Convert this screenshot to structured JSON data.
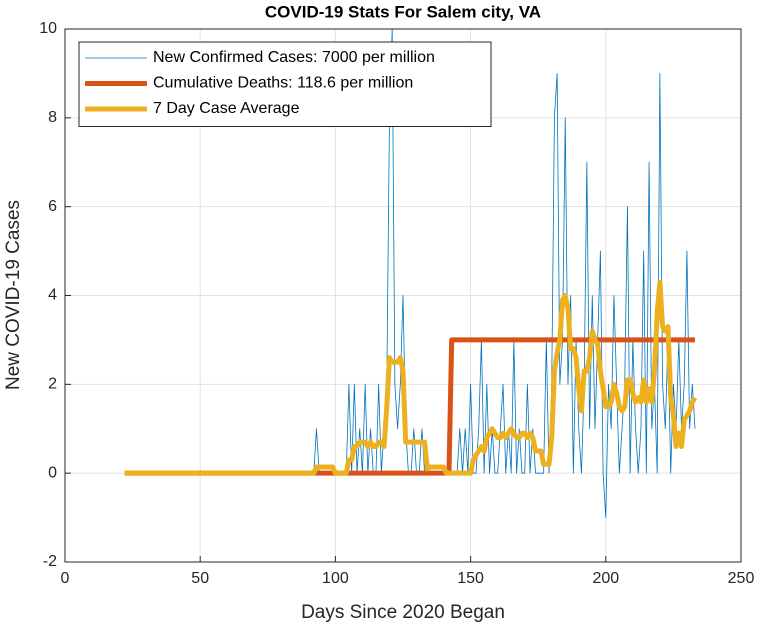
{
  "chart_data": {
    "type": "line",
    "title": "COVID-19 Stats For Salem city, VA",
    "x_label": "Days Since 2020 Began",
    "y_label": "New COVID-19 Cases",
    "xlim": [
      0,
      250
    ],
    "xticks": [
      0,
      50,
      100,
      150,
      200,
      250
    ],
    "ylim": [
      -2,
      10
    ],
    "yticks": [
      -2,
      0,
      2,
      4,
      6,
      8,
      10
    ],
    "grid": true,
    "legend": "top-left",
    "x": [
      22,
      23,
      24,
      25,
      26,
      27,
      28,
      29,
      30,
      31,
      32,
      33,
      34,
      35,
      36,
      37,
      38,
      39,
      40,
      41,
      42,
      43,
      44,
      45,
      46,
      47,
      48,
      49,
      50,
      51,
      52,
      53,
      54,
      55,
      56,
      57,
      58,
      59,
      60,
      61,
      62,
      63,
      64,
      65,
      66,
      67,
      68,
      69,
      70,
      71,
      72,
      73,
      74,
      75,
      76,
      77,
      78,
      79,
      80,
      81,
      82,
      83,
      84,
      85,
      86,
      87,
      88,
      89,
      90,
      91,
      92,
      93,
      94,
      95,
      96,
      97,
      98,
      99,
      100,
      101,
      102,
      103,
      104,
      105,
      106,
      107,
      108,
      109,
      110,
      111,
      112,
      113,
      114,
      115,
      116,
      117,
      118,
      119,
      120,
      121,
      122,
      123,
      124,
      125,
      126,
      127,
      128,
      129,
      130,
      131,
      132,
      133,
      134,
      135,
      136,
      137,
      138,
      139,
      140,
      141,
      142,
      143,
      144,
      145,
      146,
      147,
      148,
      149,
      150,
      151,
      152,
      153,
      154,
      155,
      156,
      157,
      158,
      159,
      160,
      161,
      162,
      163,
      164,
      165,
      166,
      167,
      168,
      169,
      170,
      171,
      172,
      173,
      174,
      175,
      176,
      177,
      178,
      179,
      180,
      181,
      182,
      183,
      184,
      185,
      186,
      187,
      188,
      189,
      190,
      191,
      192,
      193,
      194,
      195,
      196,
      197,
      198,
      199,
      200,
      201,
      202,
      203,
      204,
      205,
      206,
      207,
      208,
      209,
      210,
      211,
      212,
      213,
      214,
      215,
      216,
      217,
      218,
      219,
      220,
      221,
      222,
      223,
      224,
      225,
      226,
      227,
      228,
      229,
      230,
      231,
      232,
      233
    ],
    "series": [
      {
        "name": "New Confirmed Cases: 7000 per million",
        "color": "#0072BD",
        "width": 0.8,
        "values": [
          0,
          0,
          0,
          0,
          0,
          0,
          0,
          0,
          0,
          0,
          0,
          0,
          0,
          0,
          0,
          0,
          0,
          0,
          0,
          0,
          0,
          0,
          0,
          0,
          0,
          0,
          0,
          0,
          0,
          0,
          0,
          0,
          0,
          0,
          0,
          0,
          0,
          0,
          0,
          0,
          0,
          0,
          0,
          0,
          0,
          0,
          0,
          0,
          0,
          0,
          0,
          0,
          0,
          0,
          0,
          0,
          0,
          0,
          0,
          0,
          0,
          0,
          0,
          0,
          0,
          0,
          0,
          0,
          0,
          0,
          0,
          1,
          0,
          0,
          0,
          0,
          0,
          0,
          0,
          0,
          0,
          0,
          0,
          2,
          0,
          2,
          0,
          1,
          0,
          2,
          0,
          1,
          0,
          0,
          2,
          0,
          1,
          2,
          8,
          10,
          2,
          1,
          2,
          4,
          1,
          0,
          0,
          1,
          0,
          0,
          1,
          0,
          0,
          0,
          0,
          0,
          0,
          0,
          0,
          0,
          0,
          0,
          0,
          0,
          1,
          0,
          1,
          0,
          2,
          0,
          0,
          1,
          3,
          0,
          2,
          0,
          1,
          0,
          0,
          1,
          2,
          0,
          1,
          0,
          3,
          0,
          1,
          0,
          0,
          2,
          0,
          1,
          0,
          0,
          0,
          0,
          3,
          0,
          2,
          8,
          9,
          2,
          3,
          8,
          2,
          4,
          0,
          3,
          1,
          0,
          2,
          7,
          1,
          4,
          1,
          3,
          5,
          0,
          -1,
          2,
          1,
          4,
          2,
          0,
          1,
          2,
          6,
          0,
          3,
          1,
          0,
          1,
          5,
          0,
          7,
          1,
          2,
          0,
          9,
          2,
          1,
          3,
          0,
          2,
          1,
          3,
          1,
          2,
          5,
          1,
          2,
          1
        ]
      },
      {
        "name": "Cumulative Deaths: 118.6 per million",
        "color": "#D95319",
        "width": 5,
        "values": [
          0,
          0,
          0,
          0,
          0,
          0,
          0,
          0,
          0,
          0,
          0,
          0,
          0,
          0,
          0,
          0,
          0,
          0,
          0,
          0,
          0,
          0,
          0,
          0,
          0,
          0,
          0,
          0,
          0,
          0,
          0,
          0,
          0,
          0,
          0,
          0,
          0,
          0,
          0,
          0,
          0,
          0,
          0,
          0,
          0,
          0,
          0,
          0,
          0,
          0,
          0,
          0,
          0,
          0,
          0,
          0,
          0,
          0,
          0,
          0,
          0,
          0,
          0,
          0,
          0,
          0,
          0,
          0,
          0,
          0,
          0,
          0,
          0,
          0,
          0,
          0,
          0,
          0,
          0,
          0,
          0,
          0,
          0,
          0,
          0,
          0,
          0,
          0,
          0,
          0,
          0,
          0,
          0,
          0,
          0,
          0,
          0,
          0,
          0,
          0,
          0,
          0,
          0,
          0,
          0,
          0,
          0,
          0,
          0,
          0,
          0,
          0,
          0,
          0,
          0,
          0,
          0,
          0,
          0,
          0,
          0,
          3,
          3,
          3,
          3,
          3,
          3,
          3,
          3,
          3,
          3,
          3,
          3,
          3,
          3,
          3,
          3,
          3,
          3,
          3,
          3,
          3,
          3,
          3,
          3,
          3,
          3,
          3,
          3,
          3,
          3,
          3,
          3,
          3,
          3,
          3,
          3,
          3,
          3,
          3,
          3,
          3,
          3,
          3,
          3,
          3,
          3,
          3,
          3,
          3,
          3,
          3,
          3,
          3,
          3,
          3,
          3,
          3,
          3,
          3,
          3,
          3,
          3,
          3,
          3,
          3,
          3,
          3,
          3,
          3,
          3,
          3,
          3,
          3,
          3,
          3,
          3,
          3,
          3,
          3,
          3,
          3,
          3,
          3,
          3,
          3,
          3,
          3,
          3,
          3,
          3,
          3
        ]
      },
      {
        "name": "7 Day Case Average",
        "color": "#EDB120",
        "width": 5,
        "values": [
          0,
          0,
          0,
          0,
          0,
          0,
          0,
          0,
          0,
          0,
          0,
          0,
          0,
          0,
          0,
          0,
          0,
          0,
          0,
          0,
          0,
          0,
          0,
          0,
          0,
          0,
          0,
          0,
          0,
          0,
          0,
          0,
          0,
          0,
          0,
          0,
          0,
          0,
          0,
          0,
          0,
          0,
          0,
          0,
          0,
          0,
          0,
          0,
          0,
          0,
          0,
          0,
          0,
          0,
          0,
          0,
          0,
          0,
          0,
          0,
          0,
          0,
          0,
          0,
          0,
          0,
          0,
          0,
          0,
          0,
          0,
          0.14,
          0.14,
          0.14,
          0.14,
          0.14,
          0.14,
          0.14,
          0,
          0,
          0,
          0,
          0,
          0.3,
          0.3,
          0.6,
          0.6,
          0.7,
          0.7,
          0.7,
          0.6,
          0.7,
          0.6,
          0.6,
          0.7,
          0.7,
          0.6,
          1.5,
          2.6,
          2.5,
          2.5,
          2.5,
          2.6,
          2.3,
          0.7,
          0.7,
          0.7,
          0.7,
          0.7,
          0.7,
          0.7,
          0.7,
          0.1,
          0.14,
          0.14,
          0.14,
          0.14,
          0.14,
          0.14,
          0,
          0,
          0,
          0,
          0,
          0,
          0,
          0,
          0,
          0,
          0.3,
          0.4,
          0.5,
          0.6,
          0.5,
          0.8,
          0.9,
          1,
          0.9,
          0.8,
          0.8,
          0.9,
          0.8,
          0.9,
          1,
          0.9,
          0.8,
          0.8,
          0.9,
          0.9,
          0.8,
          0.9,
          0.8,
          0.5,
          0.5,
          0.5,
          0.2,
          0.2,
          0.2,
          0.8,
          2.3,
          2.7,
          3,
          3.9,
          4,
          3.7,
          2.8,
          2.8,
          2.6,
          1.9,
          1.4,
          2.3,
          2.3,
          2.6,
          3.2,
          3,
          2.9,
          2.3,
          1.9,
          1.5,
          1.5,
          1.6,
          2,
          1.8,
          1.5,
          1.4,
          1.5,
          2.1,
          2.1,
          1.8,
          1.6,
          1.7,
          1.6,
          2.1,
          1.6,
          1.9,
          1.6,
          2.3,
          3.6,
          4.3,
          3.3,
          3.2,
          3.3,
          1.7,
          1.3,
          0.6,
          0.9,
          0.6,
          1.2,
          1.3,
          1.4,
          1.6,
          1.7
        ]
      }
    ]
  }
}
